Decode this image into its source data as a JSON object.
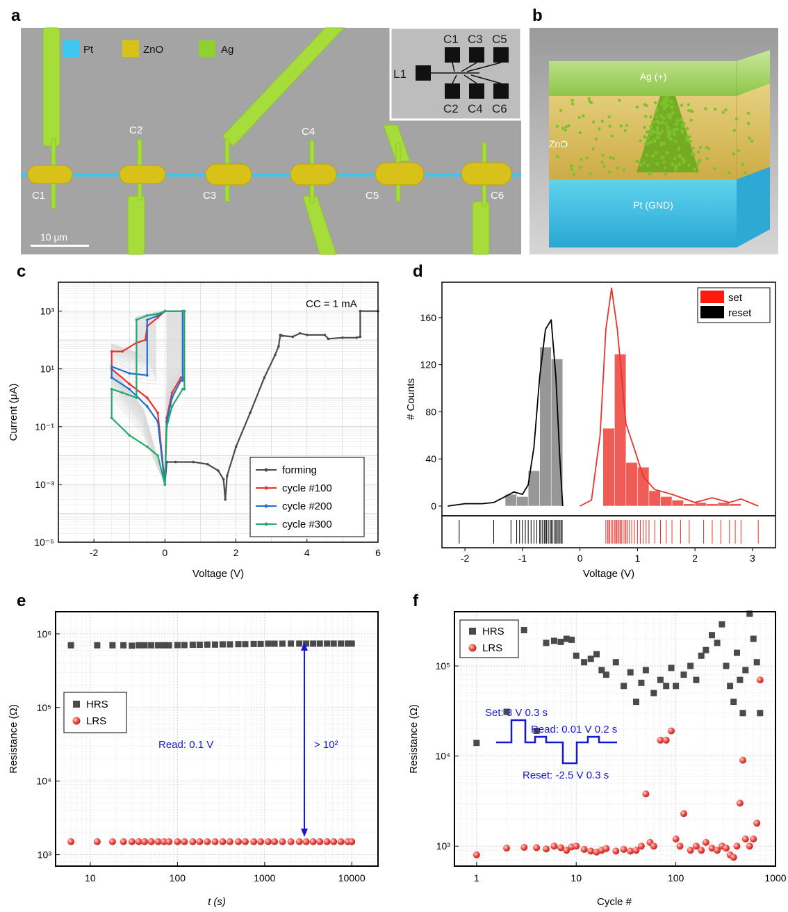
{
  "panel_labels": {
    "a": "a",
    "b": "b",
    "c": "c",
    "d": "d",
    "e": "e",
    "f": "f"
  },
  "colors": {
    "pt": "#3bc7f0",
    "zno": "#d8c21a",
    "ag": "#8fd130",
    "red": "#e8332b",
    "blue": "#1f6fd1",
    "green": "#27a86b",
    "dark": "#4a4a4a",
    "annot": "#1616d8"
  },
  "panel_a": {
    "legend": {
      "pt": "Pt",
      "zno": "ZnO",
      "ag": "Ag"
    },
    "cells": [
      "C1",
      "C2",
      "C3",
      "C4",
      "C5",
      "C6"
    ],
    "scalebar": "10 μm",
    "inset": {
      "lead": "L1",
      "top": [
        "C1",
        "C3",
        "C5"
      ],
      "bottom": [
        "C2",
        "C4",
        "C6"
      ]
    }
  },
  "panel_b": {
    "top": "Ag (+)",
    "middle": "ZnO",
    "bottom": "Pt (GND)"
  },
  "chart_data": [
    {
      "id": "c",
      "type": "line",
      "xlabel": "Voltage (V)",
      "ylabel": "Current (μA)",
      "x_scale": "linear",
      "y_scale": "log",
      "xlim": [
        -3,
        6
      ],
      "ylim": [
        1e-05,
        10000
      ],
      "xticks": [
        -2,
        0,
        2,
        4,
        6
      ],
      "yticks": [
        "10³",
        "10¹",
        "10⁻¹",
        "10⁻³",
        "10⁻⁵"
      ],
      "grid": true,
      "legend_position": "bottom-right",
      "annotation": "CC = 1 mA",
      "series": [
        {
          "name": "forming",
          "color": "#4a4a4a",
          "x": [
            0,
            0.05,
            0.3,
            0.8,
            1.2,
            1.5,
            1.65,
            1.7,
            1.75,
            2.0,
            2.4,
            2.8,
            3.1,
            3.2,
            3.25,
            3.3,
            3.6,
            3.8,
            4.0,
            4.5,
            4.6,
            5.0,
            5.4,
            5.5,
            5.5,
            6.0
          ],
          "y": [
            0.001,
            0.006,
            0.006,
            0.006,
            0.005,
            0.003,
            0.0015,
            0.0003,
            0.002,
            0.02,
            0.3,
            5,
            30,
            60,
            150,
            140,
            130,
            170,
            150,
            150,
            110,
            120,
            120,
            130,
            1000,
            1000
          ]
        },
        {
          "name": "cycle #100",
          "color": "#e8332b",
          "x": [
            0,
            0.05,
            0.2,
            0.45,
            0.5,
            0.5,
            0,
            -0.2,
            -0.5,
            -0.55,
            -0.8,
            -1.2,
            -1.5,
            -1.5,
            -1.0,
            -0.5,
            -0.2,
            0
          ],
          "y": [
            0.001,
            0.2,
            1.5,
            5,
            5,
            1000,
            1000,
            600,
            300,
            100,
            80,
            40,
            40,
            10,
            3,
            1,
            0.3,
            0.001
          ]
        },
        {
          "name": "cycle #200",
          "color": "#1f6fd1",
          "x": [
            0,
            0.05,
            0.2,
            0.45,
            0.5,
            0.5,
            0,
            -0.2,
            -0.5,
            -0.5,
            -1.0,
            -1.5,
            -1.5,
            -1.0,
            -0.5,
            -0.2,
            0
          ],
          "y": [
            0.001,
            0.15,
            1,
            4,
            4,
            1000,
            1000,
            700,
            500,
            6,
            7,
            12,
            5,
            2,
            0.5,
            0.15,
            0.001
          ]
        },
        {
          "name": "cycle #300",
          "color": "#27a86b",
          "x": [
            0,
            0.05,
            0.2,
            0.5,
            0.55,
            0.55,
            0,
            -0.2,
            -0.5,
            -0.8,
            -0.8,
            -1.2,
            -1.5,
            -1.5,
            -1.0,
            -0.5,
            -0.2,
            0
          ],
          "y": [
            0.001,
            0.1,
            0.5,
            2,
            2,
            1000,
            1000,
            800,
            700,
            500,
            1,
            1.5,
            2,
            0.2,
            0.05,
            0.02,
            0.01,
            0.001
          ]
        }
      ]
    },
    {
      "id": "d",
      "type": "bar",
      "xlabel": "Voltage (V)",
      "ylabel": "# Counts",
      "xlim": [
        -2.4,
        3.4
      ],
      "ylim": [
        0,
        190
      ],
      "xticks": [
        -2,
        -1,
        0,
        1,
        2,
        3
      ],
      "yticks": [
        0,
        40,
        80,
        120,
        160
      ],
      "legend_position": "top-right",
      "series": [
        {
          "name": "set",
          "color": "#e8332b",
          "bins": [
            [
              0.4,
              0.6,
              66
            ],
            [
              0.6,
              0.8,
              129
            ],
            [
              0.8,
              1.0,
              37
            ],
            [
              1.0,
              1.2,
              33
            ],
            [
              1.2,
              1.4,
              13
            ],
            [
              1.4,
              1.6,
              8
            ],
            [
              1.6,
              1.8,
              5
            ],
            [
              1.8,
              2.0,
              2
            ],
            [
              2.0,
              2.2,
              3
            ],
            [
              2.2,
              2.4,
              2
            ],
            [
              2.4,
              2.6,
              3
            ],
            [
              2.6,
              2.8,
              2
            ]
          ],
          "kde_x": [
            0,
            0.2,
            0.35,
            0.45,
            0.55,
            0.65,
            0.8,
            0.95,
            1.1,
            1.3,
            1.6,
            2.0,
            2.3,
            2.6,
            2.8,
            3.1
          ],
          "kde_y": [
            0,
            5,
            60,
            150,
            185,
            150,
            70,
            48,
            25,
            14,
            10,
            3,
            7,
            3,
            6,
            0
          ],
          "rug": [
            0.45,
            0.48,
            0.5,
            0.52,
            0.55,
            0.57,
            0.6,
            0.62,
            0.64,
            0.66,
            0.68,
            0.7,
            0.72,
            0.75,
            0.78,
            0.8,
            0.83,
            0.86,
            0.9,
            0.95,
            1.0,
            1.05,
            1.1,
            1.15,
            1.2,
            1.3,
            1.4,
            1.5,
            1.6,
            1.75,
            1.9,
            2.15,
            2.3,
            2.45,
            2.6,
            2.7,
            2.8,
            3.1
          ]
        },
        {
          "name": "reset",
          "color": "#000000",
          "bins": [
            [
              -1.3,
              -1.1,
              10
            ],
            [
              -1.1,
              -0.9,
              8
            ],
            [
              -0.9,
              -0.7,
              30
            ],
            [
              -0.7,
              -0.5,
              135
            ],
            [
              -0.5,
              -0.3,
              125
            ]
          ],
          "kde_x": [
            -2.3,
            -2.0,
            -1.7,
            -1.5,
            -1.3,
            -1.15,
            -1.0,
            -0.9,
            -0.8,
            -0.7,
            -0.6,
            -0.5,
            -0.42,
            -0.35,
            -0.3
          ],
          "kde_y": [
            0,
            2,
            2,
            3,
            8,
            12,
            10,
            18,
            50,
            110,
            150,
            158,
            110,
            40,
            0
          ],
          "rug": [
            -2.1,
            -1.5,
            -1.2,
            -1.1,
            -1.05,
            -1.0,
            -0.95,
            -0.9,
            -0.85,
            -0.8,
            -0.75,
            -0.7,
            -0.68,
            -0.65,
            -0.62,
            -0.6,
            -0.58,
            -0.55,
            -0.52,
            -0.5,
            -0.48,
            -0.45,
            -0.42,
            -0.4,
            -0.38,
            -0.35,
            -0.33,
            -0.31
          ]
        }
      ]
    },
    {
      "id": "e",
      "type": "scatter",
      "xlabel": "t (s)",
      "ylabel": "Resistance (Ω)",
      "x_scale": "log",
      "y_scale": "log",
      "xlim": [
        4,
        20000
      ],
      "ylim": [
        700,
        2000000
      ],
      "xticks": [
        10,
        100,
        1000,
        10000
      ],
      "yticks": [
        "10⁶",
        "10⁵",
        "10⁴",
        "10³"
      ],
      "grid": true,
      "legend_position": "middle-left",
      "annotations": {
        "read": "Read: 0.1 V",
        "ratio": "> 10²"
      },
      "series": [
        {
          "name": "HRS",
          "color": "#4a4a4a",
          "marker": "square",
          "x": [
            6,
            12,
            18,
            24,
            30,
            36,
            42,
            50,
            60,
            70,
            80,
            100,
            120,
            150,
            180,
            220,
            270,
            330,
            400,
            500,
            600,
            750,
            900,
            1100,
            1300,
            1600,
            2000,
            2500,
            3000,
            3600,
            4300,
            5200,
            6200,
            7500,
            9000,
            10000
          ],
          "y": [
            700000,
            700000,
            700000,
            700000,
            690000,
            700000,
            700000,
            700000,
            700000,
            700000,
            700000,
            705000,
            705000,
            710000,
            710000,
            715000,
            715000,
            720000,
            720000,
            725000,
            725000,
            730000,
            730000,
            735000,
            735000,
            735000,
            738000,
            738000,
            738000,
            738000,
            738000,
            738000,
            738000,
            738000,
            738000,
            738000
          ]
        },
        {
          "name": "LRS",
          "color": "#e8332b",
          "marker": "circle",
          "x": [
            6,
            12,
            18,
            24,
            30,
            36,
            42,
            50,
            60,
            70,
            80,
            100,
            120,
            150,
            180,
            220,
            270,
            330,
            400,
            500,
            600,
            750,
            900,
            1100,
            1300,
            1600,
            2000,
            2500,
            3000,
            3600,
            4300,
            5200,
            6200,
            7500,
            9000,
            10000
          ],
          "y": [
            1500,
            1500,
            1500,
            1500,
            1500,
            1500,
            1500,
            1500,
            1500,
            1500,
            1500,
            1500,
            1500,
            1500,
            1500,
            1500,
            1500,
            1500,
            1500,
            1500,
            1500,
            1500,
            1500,
            1500,
            1500,
            1500,
            1500,
            1500,
            1500,
            1500,
            1500,
            1500,
            1500,
            1500,
            1500,
            1500
          ]
        }
      ]
    },
    {
      "id": "f",
      "type": "scatter",
      "xlabel": "Cycle #",
      "ylabel": "Resistance (Ω)",
      "x_scale": "log",
      "y_scale": "log",
      "xlim": [
        0.6,
        1000
      ],
      "ylim": [
        600,
        400000
      ],
      "xticks": [
        1,
        10,
        100,
        1000
      ],
      "yticks": [
        "10⁵",
        "10⁴",
        "10³"
      ],
      "grid": true,
      "legend_position": "top-left",
      "annotations": {
        "set": "Set: 3 V 0.3 s",
        "read": "Read: 0.01 V 0.2 s",
        "reset": "Reset: -2.5 V 0.3 s"
      },
      "series": [
        {
          "name": "HRS",
          "color": "#4a4a4a",
          "marker": "square",
          "x": [
            1,
            2,
            3,
            4,
            5,
            6,
            7,
            8,
            9,
            10,
            12,
            14,
            16,
            18,
            20,
            25,
            30,
            35,
            40,
            45,
            50,
            60,
            70,
            80,
            90,
            100,
            120,
            140,
            160,
            180,
            200,
            230,
            260,
            290,
            320,
            350,
            380,
            410,
            440,
            470,
            500,
            550,
            600,
            650,
            700
          ],
          "y": [
            14000,
            31000,
            250000,
            19000,
            180000,
            190000,
            185000,
            200000,
            195000,
            130000,
            110000,
            120000,
            135000,
            90000,
            80000,
            110000,
            60000,
            85000,
            40000,
            65000,
            90000,
            50000,
            70000,
            60000,
            95000,
            60000,
            80000,
            100000,
            70000,
            130000,
            150000,
            220000,
            180000,
            290000,
            100000,
            60000,
            40000,
            140000,
            70000,
            30000,
            90000,
            380000,
            200000,
            110000,
            30000
          ]
        },
        {
          "name": "LRS",
          "color": "#e8332b",
          "marker": "circle",
          "x": [
            1,
            2,
            3,
            4,
            5,
            6,
            7,
            8,
            9,
            10,
            12,
            14,
            16,
            18,
            20,
            25,
            30,
            35,
            40,
            45,
            50,
            55,
            60,
            70,
            80,
            90,
            100,
            110,
            120,
            140,
            160,
            180,
            200,
            230,
            260,
            290,
            320,
            350,
            380,
            410,
            440,
            470,
            500,
            550,
            600,
            650,
            700
          ],
          "y": [
            800,
            950,
            970,
            960,
            930,
            1000,
            960,
            900,
            980,
            1000,
            920,
            880,
            860,
            900,
            940,
            880,
            920,
            880,
            900,
            1000,
            3800,
            1100,
            1000,
            15000,
            15000,
            19000,
            1200,
            1000,
            2300,
            900,
            1000,
            900,
            1100,
            950,
            900,
            1000,
            950,
            800,
            750,
            1000,
            3000,
            9000,
            1200,
            1000,
            1200,
            1800,
            70000
          ]
        }
      ]
    }
  ]
}
